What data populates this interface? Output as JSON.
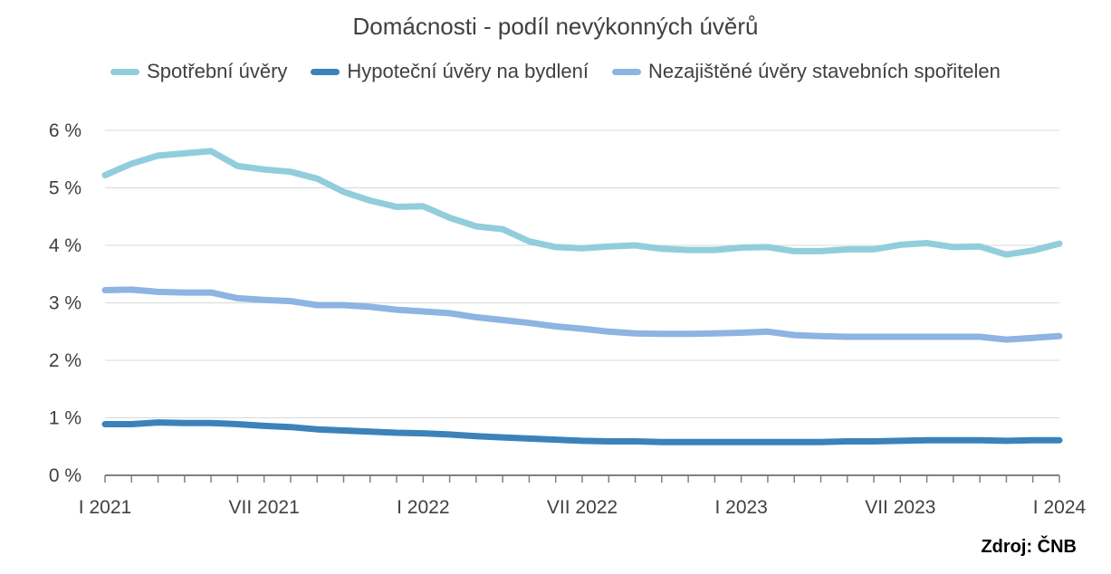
{
  "chart_data": {
    "type": "line",
    "title": "Domácnosti - podíl nevýkonných úvěrů",
    "xlabel": "",
    "ylabel": "",
    "ylim": [
      0,
      6
    ],
    "y_ticks": [
      "0 %",
      "1 %",
      "2 %",
      "3 %",
      "4 %",
      "5 %",
      "6 %"
    ],
    "x_tick_labels": [
      "I 2021",
      "VII 2021",
      "I 2022",
      "VII 2022",
      "I 2023",
      "VII 2023",
      "I 2024"
    ],
    "x": [
      "2021-01",
      "2021-02",
      "2021-03",
      "2021-04",
      "2021-05",
      "2021-06",
      "2021-07",
      "2021-08",
      "2021-09",
      "2021-10",
      "2021-11",
      "2021-12",
      "2022-01",
      "2022-02",
      "2022-03",
      "2022-04",
      "2022-05",
      "2022-06",
      "2022-07",
      "2022-08",
      "2022-09",
      "2022-10",
      "2022-11",
      "2022-12",
      "2023-01",
      "2023-02",
      "2023-03",
      "2023-04",
      "2023-05",
      "2023-06",
      "2023-07",
      "2023-08",
      "2023-09",
      "2023-10",
      "2023-11",
      "2023-12",
      "2024-01"
    ],
    "grid": true,
    "legend_position": "top",
    "series": [
      {
        "name": "Spotřební úvěry",
        "color": "#92cddc",
        "values": [
          5.22,
          5.42,
          5.56,
          5.6,
          5.64,
          5.38,
          5.32,
          5.28,
          5.16,
          4.93,
          4.78,
          4.67,
          4.68,
          4.48,
          4.33,
          4.28,
          4.07,
          3.97,
          3.95,
          3.98,
          4.0,
          3.94,
          3.92,
          3.92,
          3.96,
          3.97,
          3.9,
          3.9,
          3.93,
          3.93,
          4.01,
          4.04,
          3.97,
          3.98,
          3.84,
          3.91,
          4.03
        ]
      },
      {
        "name": "Hypoteční úvěry na bydlení",
        "color": "#3c82b9",
        "values": [
          0.89,
          0.89,
          0.92,
          0.91,
          0.91,
          0.89,
          0.86,
          0.84,
          0.8,
          0.78,
          0.76,
          0.74,
          0.73,
          0.71,
          0.68,
          0.66,
          0.64,
          0.62,
          0.6,
          0.59,
          0.59,
          0.58,
          0.58,
          0.58,
          0.58,
          0.58,
          0.58,
          0.58,
          0.59,
          0.59,
          0.6,
          0.61,
          0.61,
          0.61,
          0.6,
          0.61,
          0.61
        ]
      },
      {
        "name": "Nezajištěné úvěry stavebních spořitelen",
        "color": "#8db4e2",
        "values": [
          3.22,
          3.23,
          3.19,
          3.18,
          3.18,
          3.08,
          3.05,
          3.03,
          2.96,
          2.96,
          2.93,
          2.88,
          2.85,
          2.82,
          2.75,
          2.7,
          2.65,
          2.59,
          2.55,
          2.5,
          2.47,
          2.46,
          2.46,
          2.47,
          2.48,
          2.5,
          2.44,
          2.42,
          2.41,
          2.41,
          2.41,
          2.41,
          2.41,
          2.41,
          2.36,
          2.39,
          2.42
        ]
      }
    ]
  },
  "source_label": "Zdroj: ČNB"
}
